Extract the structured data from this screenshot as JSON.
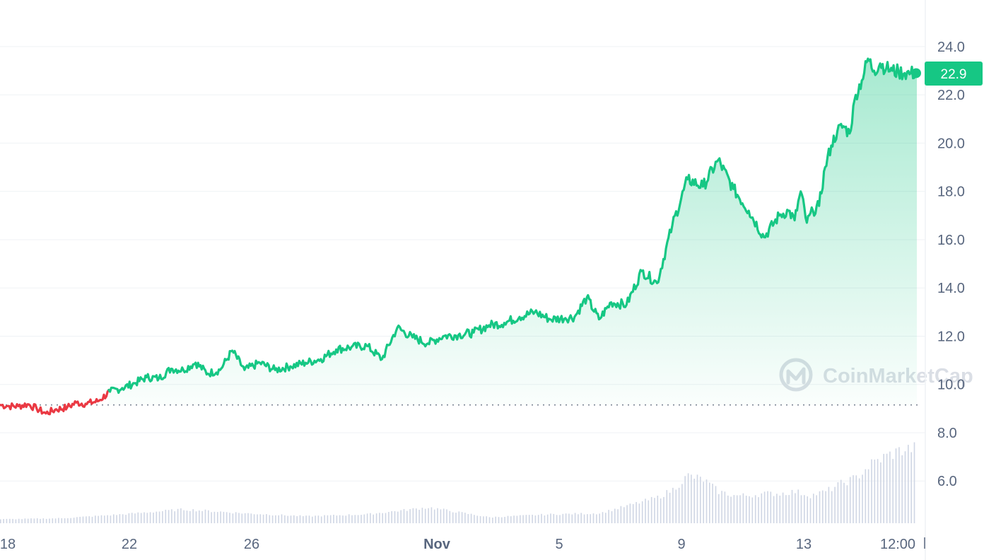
{
  "chart_data": {
    "type": "line",
    "x_ticks": [
      "18",
      "22",
      "26",
      "Nov",
      "5",
      "9",
      "13",
      "12:00"
    ],
    "y_ticks": [
      "6.0",
      "8.0",
      "10.0",
      "12.0",
      "14.0",
      "16.0",
      "18.0",
      "20.0",
      "22.0",
      "24.0"
    ],
    "ylim": [
      4.2,
      24.0
    ],
    "reference_value": 9.15,
    "current_price": "22.9",
    "watermark": "CoinMarketCap",
    "grid": true,
    "colors": {
      "up": "#16c784",
      "down": "#ea3943",
      "axis_text": "#58667e",
      "grid": "#eff2f5",
      "volume": "#cfd6e4"
    },
    "series": [
      {
        "x": [
          0,
          0.3,
          0.6,
          0.9,
          1.2,
          1.5,
          1.8,
          2.2,
          2.5,
          2.8,
          3.2,
          3.6,
          4.0,
          4.4,
          4.8,
          5.2,
          5.6,
          6.0,
          6.4,
          6.8,
          7.2,
          7.6,
          8.0,
          8.5,
          9.0,
          9.5,
          10.0,
          10.5,
          11.0,
          11.5,
          12.0,
          12.5,
          13.0,
          13.5,
          14.0,
          14.5,
          15.0,
          15.5,
          16.0,
          16.5,
          17.0,
          17.5,
          18.0,
          18.5,
          18.8,
          19.2,
          19.6,
          20.0,
          20.5,
          21.0,
          21.5,
          22.0,
          22.5,
          23.0,
          23.5,
          24.0,
          24.5,
          25.0,
          25.5,
          25.8,
          26.0,
          26.2,
          26.4,
          26.6,
          26.8,
          27.0,
          27.2,
          27.4,
          27.6,
          27.8,
          28.0,
          28.2,
          28.4,
          28.6,
          28.8,
          29.0,
          29.2,
          29.4,
          29.6,
          29.8,
          29.95,
          30.0
        ],
        "values": [
          9.15,
          9.1,
          9.1,
          9.18,
          9.0,
          8.8,
          8.95,
          9.05,
          9.25,
          9.2,
          9.3,
          9.7,
          9.85,
          10.05,
          10.3,
          10.25,
          10.65,
          10.6,
          10.9,
          10.45,
          10.6,
          11.4,
          10.6,
          10.9,
          10.6,
          10.75,
          10.9,
          11.05,
          11.45,
          11.55,
          11.6,
          11.05,
          12.35,
          11.95,
          11.7,
          12.0,
          12.05,
          12.15,
          12.45,
          12.55,
          12.8,
          13.0,
          12.7,
          12.75,
          12.8,
          13.6,
          12.7,
          13.4,
          13.3,
          14.7,
          14.2,
          16.6,
          18.5,
          18.2,
          19.3,
          18.1,
          17.2,
          16.1,
          17.0,
          17.2,
          16.8,
          18.0,
          16.7,
          17.2,
          17.4,
          19.0,
          19.9,
          20.5,
          20.7,
          20.4,
          22.0,
          22.6,
          23.5,
          23.0,
          23.3,
          23.1,
          23.0,
          22.95,
          22.9,
          22.9,
          22.9,
          22.9
        ]
      }
    ],
    "volume": {
      "x": [
        0,
        2,
        4,
        6,
        8,
        10,
        12,
        14,
        16,
        18,
        19.6,
        20.8,
        21.5,
        22,
        22.5,
        23,
        23.5,
        24,
        24.5,
        25,
        25.5,
        26,
        26.5,
        27,
        27.5,
        28,
        28.5,
        29,
        29.5,
        30
      ],
      "values": [
        0.2,
        0.25,
        0.45,
        0.7,
        0.5,
        0.35,
        0.45,
        0.8,
        0.3,
        0.45,
        0.5,
        1.0,
        1.3,
        1.7,
        2.4,
        2.2,
        1.6,
        1.4,
        1.4,
        1.5,
        1.5,
        1.6,
        1.4,
        1.6,
        2.0,
        2.3,
        3.0,
        3.4,
        3.7,
        3.8
      ]
    }
  }
}
